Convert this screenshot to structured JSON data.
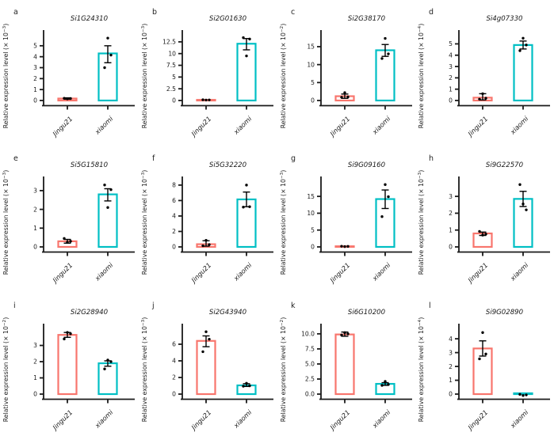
{
  "figure": {
    "description": "Twelve-panel bar figure of relative gene expression, Jingu21 vs xiaomi",
    "ylabel_prefix": "Relative expression level (× 10",
    "ylabel_suffix": ")",
    "categories": [
      "Jingu21",
      "xiaomi"
    ],
    "colors": {
      "Jingu21": "#F8766D",
      "xiaomi": "#00BFC4"
    },
    "axis_color": "#1a1a1a",
    "point_color": "#000000",
    "bar_fill": "#ffffff"
  },
  "chart_data": [
    {
      "type": "bar",
      "letter": "a",
      "title": "Si1G24310",
      "exponent": "−3",
      "categories": [
        "Jingu21",
        "xiaomi"
      ],
      "ytick_values": [
        0,
        1,
        2,
        3,
        4,
        5
      ],
      "ytick_labels": [
        "0",
        "1",
        "2",
        "3",
        "4",
        "5"
      ],
      "ylim": [
        0,
        6.0
      ],
      "series": [
        {
          "name": "Jingu21",
          "bar": 0.18,
          "error": [
            0.12,
            0.24
          ],
          "points": [
            0.15,
            0.18,
            0.2
          ]
        },
        {
          "name": "xiaomi",
          "bar": 4.3,
          "error": [
            3.45,
            5.0
          ],
          "points": [
            5.7,
            4.15,
            3.0
          ]
        }
      ]
    },
    {
      "type": "bar",
      "letter": "b",
      "title": "Si2G01630",
      "exponent": "−3",
      "categories": [
        "Jingu21",
        "xiaomi"
      ],
      "ytick_values": [
        0,
        2.5,
        5,
        7.5,
        10,
        12.5
      ],
      "ytick_labels": [
        "0",
        "2.5",
        "5",
        "7.5",
        "10",
        "12.5"
      ],
      "ylim": [
        0,
        14.0
      ],
      "series": [
        {
          "name": "Jingu21",
          "bar": 0.12,
          "error": null,
          "points": [
            0.1,
            0.12,
            0.15
          ]
        },
        {
          "name": "xiaomi",
          "bar": 12.1,
          "error": [
            10.8,
            13.2
          ],
          "points": [
            9.5,
            13.1,
            13.4
          ]
        }
      ]
    },
    {
      "type": "bar",
      "letter": "c",
      "title": "Si2G38170",
      "exponent": "−2",
      "categories": [
        "Jingu21",
        "xiaomi"
      ],
      "ytick_values": [
        0,
        5,
        10,
        15
      ],
      "ytick_labels": [
        "0",
        "5",
        "10",
        "15"
      ],
      "ylim": [
        0,
        18.3
      ],
      "series": [
        {
          "name": "Jingu21",
          "bar": 1.2,
          "error": [
            0.6,
            1.8
          ],
          "points": [
            2.2,
            1.0,
            0.9
          ]
        },
        {
          "name": "xiaomi",
          "bar": 14.0,
          "error": [
            12.3,
            15.6
          ],
          "points": [
            17.3,
            13.0,
            11.7
          ]
        }
      ]
    },
    {
      "type": "bar",
      "letter": "d",
      "title": "Si4g07330",
      "exponent": "−4",
      "categories": [
        "Jingu21",
        "xiaomi"
      ],
      "ytick_values": [
        0,
        1,
        2,
        3,
        4,
        5
      ],
      "ytick_labels": [
        "0",
        "1",
        "2",
        "3",
        "4",
        "5"
      ],
      "ylim": [
        0,
        5.8
      ],
      "series": [
        {
          "name": "Jingu21",
          "bar": 0.25,
          "error": [
            0.05,
            0.6
          ],
          "points": [
            0.6,
            0.2,
            0.12
          ]
        },
        {
          "name": "xiaomi",
          "bar": 4.9,
          "error": [
            4.55,
            5.25
          ],
          "points": [
            5.5,
            4.9,
            4.4
          ]
        }
      ]
    },
    {
      "type": "bar",
      "letter": "e",
      "title": "Si5G15810",
      "exponent": "−3",
      "categories": [
        "Jingu21",
        "xiaomi"
      ],
      "ytick_values": [
        0,
        1,
        2,
        3
      ],
      "ytick_labels": [
        "0",
        "1",
        "2",
        "3"
      ],
      "ylim": [
        0,
        3.5
      ],
      "series": [
        {
          "name": "Jingu21",
          "bar": 0.3,
          "error": [
            0.2,
            0.4
          ],
          "points": [
            0.25,
            0.3,
            0.45
          ]
        },
        {
          "name": "xiaomi",
          "bar": 2.8,
          "error": [
            2.45,
            3.1
          ],
          "points": [
            2.1,
            3.05,
            3.3
          ]
        }
      ]
    },
    {
      "type": "bar",
      "letter": "f",
      "title": "Si5G32220",
      "exponent": "−3",
      "categories": [
        "Jingu21",
        "xiaomi"
      ],
      "ytick_values": [
        0,
        2,
        4,
        6,
        8
      ],
      "ytick_labels": [
        "0",
        "2",
        "4",
        "6",
        "8"
      ],
      "ylim": [
        0,
        8.5
      ],
      "series": [
        {
          "name": "Jingu21",
          "bar": 0.35,
          "error": [
            0.1,
            0.8
          ],
          "points": [
            0.85,
            0.3,
            0.15
          ]
        },
        {
          "name": "xiaomi",
          "bar": 6.15,
          "error": [
            5.2,
            7.1
          ],
          "points": [
            8.0,
            5.2,
            5.15
          ]
        }
      ]
    },
    {
      "type": "bar",
      "letter": "g",
      "title": "Si9G09160",
      "exponent": "−3",
      "categories": [
        "Jingu21",
        "xiaomi"
      ],
      "ytick_values": [
        0,
        5,
        10,
        15
      ],
      "ytick_labels": [
        "0",
        "5",
        "10",
        "15"
      ],
      "ylim": [
        0,
        19.5
      ],
      "series": [
        {
          "name": "Jingu21",
          "bar": 0.15,
          "error": null,
          "points": [
            0.1,
            0.15,
            0.2
          ]
        },
        {
          "name": "xiaomi",
          "bar": 14.2,
          "error": [
            11.4,
            16.9
          ],
          "points": [
            18.5,
            14.9,
            9.0
          ]
        }
      ]
    },
    {
      "type": "bar",
      "letter": "h",
      "title": "Si9G22570",
      "exponent": "−3",
      "categories": [
        "Jingu21",
        "xiaomi"
      ],
      "ytick_values": [
        0,
        1,
        2,
        3
      ],
      "ytick_labels": [
        "0",
        "1",
        "2",
        "3"
      ],
      "ylim": [
        0,
        3.9
      ],
      "series": [
        {
          "name": "Jingu21",
          "bar": 0.8,
          "error": [
            0.68,
            0.88
          ],
          "points": [
            0.7,
            0.76,
            0.92
          ]
        },
        {
          "name": "xiaomi",
          "bar": 2.85,
          "error": [
            2.4,
            3.3
          ],
          "points": [
            2.55,
            2.2,
            3.7
          ]
        }
      ]
    },
    {
      "type": "bar",
      "letter": "i",
      "title": "Si2G28940",
      "exponent": "−2",
      "categories": [
        "Jingu21",
        "xiaomi"
      ],
      "ytick_values": [
        0,
        1,
        2,
        3
      ],
      "ytick_labels": [
        "0",
        "1",
        "2",
        "3"
      ],
      "ylim": [
        0,
        4.05
      ],
      "series": [
        {
          "name": "Jingu21",
          "bar": 3.65,
          "error": [
            3.5,
            3.8
          ],
          "points": [
            3.8,
            3.72,
            3.4
          ]
        },
        {
          "name": "xiaomi",
          "bar": 1.9,
          "error": [
            1.72,
            2.05
          ],
          "points": [
            2.1,
            2.0,
            1.55
          ]
        }
      ]
    },
    {
      "type": "bar",
      "letter": "j",
      "title": "Si2G43940",
      "exponent": "−3",
      "categories": [
        "Jingu21",
        "xiaomi"
      ],
      "ytick_values": [
        0,
        2,
        4,
        6
      ],
      "ytick_labels": [
        "0",
        "2",
        "4",
        "6"
      ],
      "ylim": [
        0,
        7.9
      ],
      "series": [
        {
          "name": "Jingu21",
          "bar": 6.4,
          "error": [
            5.7,
            7.0
          ],
          "points": [
            7.5,
            6.6,
            5.1
          ]
        },
        {
          "name": "xiaomi",
          "bar": 1.05,
          "error": [
            0.92,
            1.25
          ],
          "points": [
            1.3,
            1.0,
            0.95
          ]
        }
      ]
    },
    {
      "type": "bar",
      "letter": "k",
      "title": "Si6G10200",
      "exponent": "−2",
      "categories": [
        "Jingu21",
        "xiaomi"
      ],
      "ytick_values": [
        0,
        2.5,
        5,
        7.5,
        10
      ],
      "ytick_labels": [
        "0.0",
        "2.5",
        "5.0",
        "7.5",
        "10.0"
      ],
      "ylim": [
        0,
        10.9
      ],
      "series": [
        {
          "name": "Jingu21",
          "bar": 9.9,
          "error": [
            9.6,
            10.3
          ],
          "points": [
            10.2,
            10.0,
            9.8
          ]
        },
        {
          "name": "xiaomi",
          "bar": 1.7,
          "error": [
            1.45,
            1.9
          ],
          "points": [
            2.1,
            1.6,
            1.45
          ]
        }
      ]
    },
    {
      "type": "bar",
      "letter": "l",
      "title": "Si9G02890",
      "exponent": "−4",
      "categories": [
        "Jingu21",
        "xiaomi"
      ],
      "ytick_values": [
        0,
        1,
        2,
        3,
        4
      ],
      "ytick_labels": [
        "0",
        "1",
        "2",
        "3",
        "4"
      ],
      "ylim": [
        0,
        4.75
      ],
      "series": [
        {
          "name": "Jingu21",
          "bar": 3.3,
          "error": [
            2.75,
            3.85
          ],
          "points": [
            4.45,
            2.9,
            2.55
          ]
        },
        {
          "name": "xiaomi",
          "bar": 0.06,
          "error": null,
          "points": [
            -0.1,
            -0.06,
            -0.02
          ]
        }
      ]
    }
  ]
}
